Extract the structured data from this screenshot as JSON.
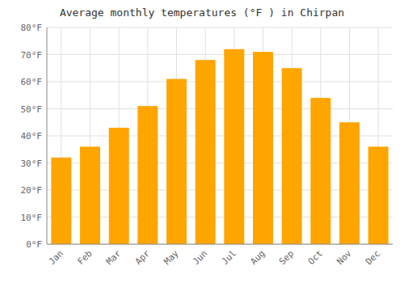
{
  "chart_data": {
    "type": "bar",
    "title": "Average monthly temperatures (°F ) in Chirpan",
    "categories": [
      "Jan",
      "Feb",
      "Mar",
      "Apr",
      "May",
      "Jun",
      "Jul",
      "Aug",
      "Sep",
      "Oct",
      "Nov",
      "Dec"
    ],
    "values": [
      32,
      36,
      43,
      51,
      61,
      68,
      72,
      71,
      65,
      54,
      45,
      36
    ],
    "color": "#FFA500",
    "ylim": [
      0,
      80
    ],
    "yticks": [
      {
        "value": 0,
        "label": "0°F"
      },
      {
        "value": 10,
        "label": "10°F"
      },
      {
        "value": 20,
        "label": "20°F"
      },
      {
        "value": 30,
        "label": "30°F"
      },
      {
        "value": 40,
        "label": "40°F"
      },
      {
        "value": 50,
        "label": "50°F"
      },
      {
        "value": 60,
        "label": "60°F"
      },
      {
        "value": 70,
        "label": "70°F"
      },
      {
        "value": 80,
        "label": "80°F"
      }
    ],
    "grid": true
  }
}
